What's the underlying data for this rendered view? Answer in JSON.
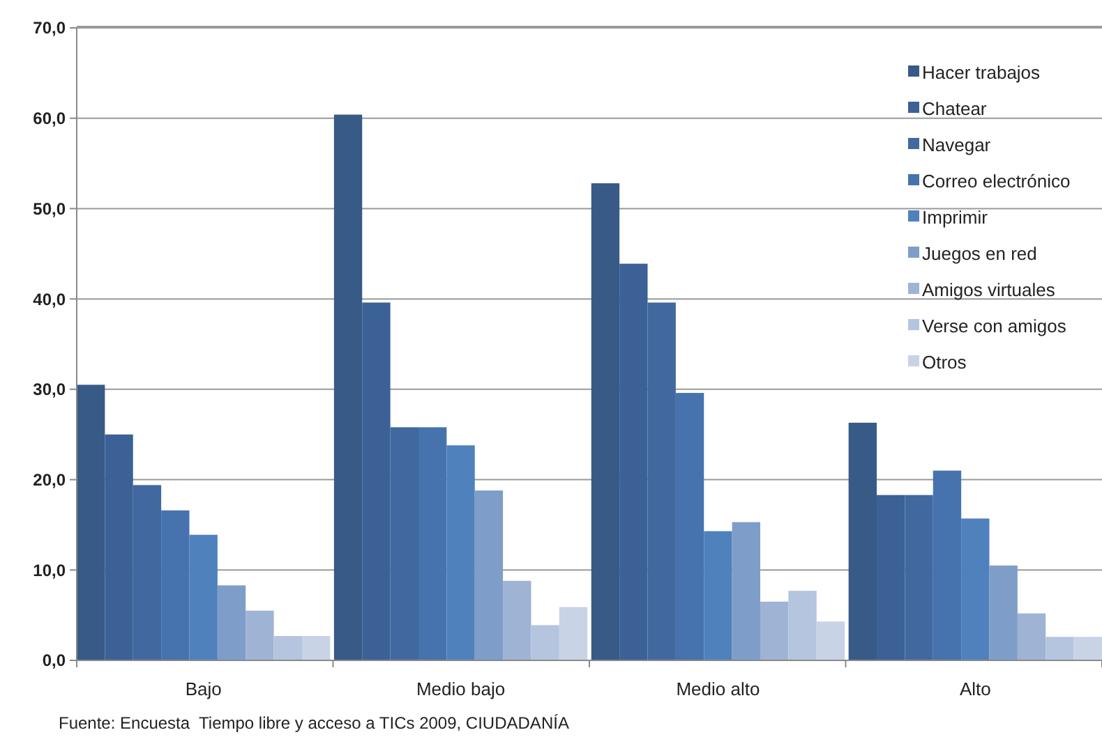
{
  "chart_data": {
    "type": "bar",
    "categories": [
      "Bajo",
      "Medio bajo",
      "Medio alto",
      "Alto"
    ],
    "series": [
      {
        "name": "Hacer trabajos",
        "color": "#375a87",
        "values": [
          30.5,
          60.4,
          52.8,
          26.3
        ]
      },
      {
        "name": "Chatear",
        "color": "#3b6196",
        "values": [
          25.0,
          39.6,
          43.9,
          18.3
        ]
      },
      {
        "name": "Navegar",
        "color": "#41699f",
        "values": [
          19.4,
          25.8,
          39.6,
          18.3
        ]
      },
      {
        "name": "Correo electrónico",
        "color": "#4673ad",
        "values": [
          16.6,
          25.8,
          29.6,
          21.0
        ]
      },
      {
        "name": "Imprimir",
        "color": "#4f81bd",
        "values": [
          13.9,
          23.8,
          14.3,
          15.7
        ]
      },
      {
        "name": "Juegos en red",
        "color": "#7f9dc9",
        "values": [
          8.3,
          18.8,
          15.3,
          10.5
        ]
      },
      {
        "name": "Amigos virtuales",
        "color": "#9fb3d4",
        "values": [
          5.5,
          8.8,
          6.5,
          5.2
        ]
      },
      {
        "name": "Verse con amigos",
        "color": "#b5c4df",
        "values": [
          2.7,
          3.9,
          7.7,
          2.6
        ]
      },
      {
        "name": "Otros",
        "color": "#c9d3e6",
        "values": [
          2.7,
          5.9,
          4.3,
          2.6
        ]
      }
    ],
    "ylim": [
      0,
      70
    ],
    "yticks": [
      {
        "value": 0,
        "label": "0,0"
      },
      {
        "value": 10,
        "label": "10,0"
      },
      {
        "value": 20,
        "label": "20,0"
      },
      {
        "value": 30,
        "label": "30,0"
      },
      {
        "value": 40,
        "label": "40,0"
      },
      {
        "value": 50,
        "label": "50,0"
      },
      {
        "value": 60,
        "label": "60,0"
      },
      {
        "value": 70,
        "label": "70,0"
      }
    ],
    "grid": "y",
    "legend": "top right",
    "annotations": [
      "Fuente: Encuesta  Tiempo libre y acceso a TICs 2009, CIUDADANÍA"
    ]
  }
}
